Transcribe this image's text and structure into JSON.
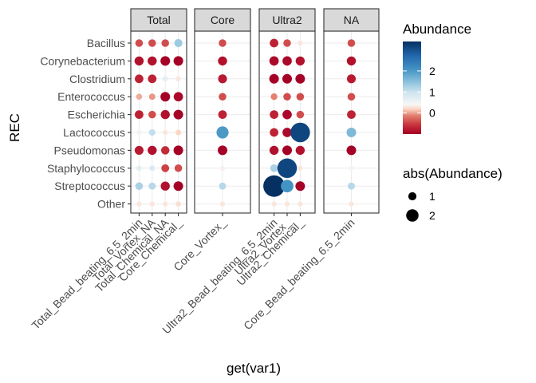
{
  "chart_data": {
    "type": "scatter",
    "subtype": "faceted dot plot",
    "xlabel": "get(var1)",
    "ylabel": "REC",
    "rows": [
      "Bacillus",
      "Corynebacterium",
      "Clostridium",
      "Enterococcus",
      "Escherichia",
      "Lactococcus",
      "Pseudomonas",
      "Staphylococcus",
      "Streptococcus",
      "Other"
    ],
    "facets": [
      {
        "label": "Total",
        "columns": [
          "Total_Bead_beating_6.5_2min",
          "Total_Vortex_NA",
          "Total_Chemical_NA",
          "Core_Chemical_"
        ]
      },
      {
        "label": "Core",
        "columns": [
          "Core_Vortex_"
        ]
      },
      {
        "label": "Ultra2",
        "columns": [
          "Ultra2_Bead_beating_6.5_2min",
          "Ultra2_Vortex_",
          "Ultra2_Chemical_"
        ]
      },
      {
        "label": "NA",
        "columns": [
          "Core_Bead_beating_6.5_2min"
        ]
      }
    ],
    "values": [
      [
        [
          -0.6,
          -0.6,
          -0.6,
          0.7
        ],
        [
          -0.6
        ],
        [
          -0.8,
          -0.6,
          -0.1
        ],
        [
          -0.6
        ]
      ],
      [
        [
          -0.9,
          -0.9,
          -1.0,
          -1.0
        ],
        [
          -0.9
        ],
        [
          -0.95,
          -0.95,
          -0.9
        ],
        [
          -0.9
        ]
      ],
      [
        [
          -0.8,
          -0.8,
          0.15,
          -0.1
        ],
        [
          -0.85
        ],
        [
          -1.0,
          -1.0,
          -1.0
        ],
        [
          -0.85
        ]
      ],
      [
        [
          -0.3,
          -0.35,
          -1.0,
          -0.95
        ],
        [
          -0.6
        ],
        [
          -0.4,
          -0.6,
          -0.6
        ],
        [
          -0.6
        ]
      ],
      [
        [
          -0.8,
          -0.6,
          -0.9,
          -1.0
        ],
        [
          -0.8
        ],
        [
          -0.8,
          -0.95,
          -0.6
        ],
        [
          -0.8
        ]
      ],
      [
        [
          0.05,
          0.4,
          -0.1,
          -0.2
        ],
        [
          1.5
        ],
        [
          -0.8,
          -0.95,
          3.0
        ],
        [
          1.0
        ]
      ],
      [
        [
          -0.85,
          -0.9,
          -0.75,
          -1.0
        ],
        [
          -1.0
        ],
        [
          -0.9,
          -1.0,
          -0.9
        ],
        [
          -1.0
        ]
      ],
      [
        [
          0.15,
          0.2,
          -0.65,
          -0.6
        ],
        [
          -0.05
        ],
        [
          0.6,
          3.0,
          -0.1
        ],
        [
          0.05
        ]
      ],
      [
        [
          0.6,
          0.5,
          -0.9,
          -1.0
        ],
        [
          0.5
        ],
        [
          3.4,
          1.6,
          -1.0
        ],
        [
          0.5
        ]
      ],
      [
        [
          -0.1,
          -0.1,
          -0.1,
          -0.15
        ],
        [
          -0.1
        ],
        [
          -0.1,
          -0.1,
          -0.1
        ],
        [
          -0.1
        ]
      ]
    ],
    "colour_legend": {
      "title": "Abundance",
      "breaks": [
        0,
        1,
        2
      ],
      "limits": [
        -1.0,
        3.4
      ],
      "colors": [
        "#b2182b",
        "#d6604d",
        "#f4a582",
        "#fddbc7",
        "#f7f7f7",
        "#d1e5f0",
        "#92c5de",
        "#4393c3",
        "#2166ac",
        "#053061"
      ]
    },
    "size_legend": {
      "title": "abs(Abundance)",
      "breaks": [
        1,
        2
      ]
    },
    "legend_position": "right",
    "grid": true
  }
}
